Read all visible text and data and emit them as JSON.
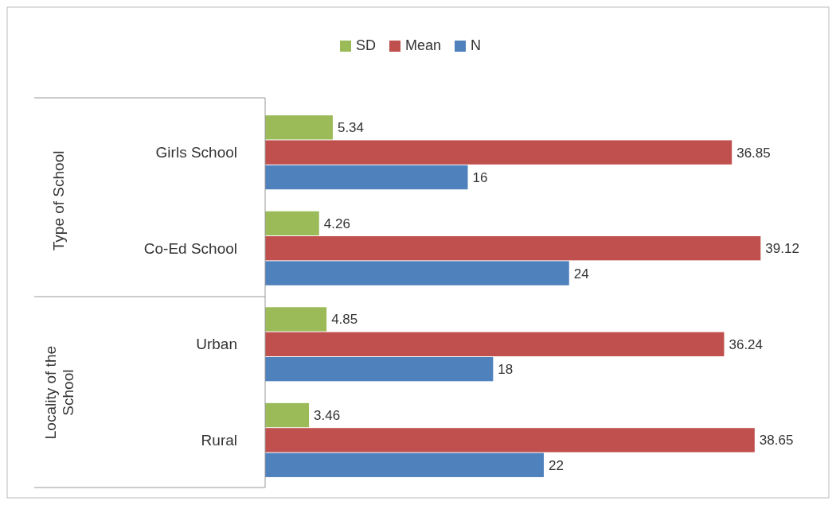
{
  "chart_data": {
    "type": "bar",
    "orientation": "horizontal",
    "categories": [
      "Girls School",
      "Co-Ed School",
      "Urban",
      "Rural"
    ],
    "series": [
      {
        "name": "SD",
        "color": "#9bbb59",
        "values": [
          5.34,
          4.26,
          4.85,
          3.46
        ]
      },
      {
        "name": "Mean",
        "color": "#c0504d",
        "values": [
          36.85,
          39.12,
          36.24,
          38.65
        ]
      },
      {
        "name": "N",
        "color": "#4f81bd",
        "values": [
          16,
          24,
          18,
          22
        ]
      }
    ],
    "annotations": [
      "Type of School",
      "Locality of the School"
    ],
    "data_labels": true,
    "legend": "top"
  }
}
